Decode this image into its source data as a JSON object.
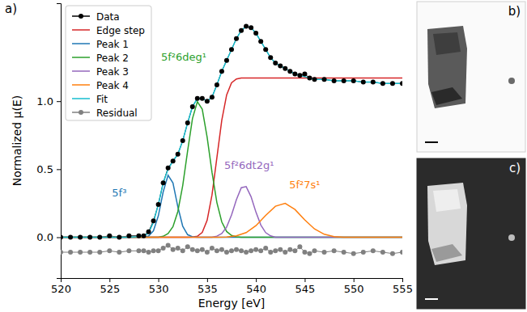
{
  "chart_data": {
    "type": "line",
    "panel_label": "a)",
    "xlabel": "Energy [eV]",
    "ylabel": "Normalized μ(E)",
    "xlim": [
      520,
      555
    ],
    "xticks": [
      520,
      525,
      530,
      535,
      540,
      545,
      550,
      555
    ],
    "ylim": [
      -0.3,
      1.72
    ],
    "yticks": [
      {
        "value": 0,
        "label": "0.0"
      },
      {
        "value": 0.5,
        "label": "0.5"
      },
      {
        "value": 1,
        "label": "1.0"
      }
    ],
    "grid": false,
    "legend": "upper left",
    "series": [
      {
        "name": "Data",
        "color": "#000000",
        "marker": "circle",
        "x": [
          520,
          521,
          522,
          523,
          524,
          525,
          526,
          527,
          528,
          528.5,
          529,
          529.5,
          530,
          530.5,
          531,
          531.5,
          532,
          532.5,
          533,
          533.5,
          534,
          534.5,
          535,
          535.5,
          536,
          536.5,
          537,
          537.5,
          538,
          538.5,
          539,
          539.5,
          540,
          540.5,
          541,
          541.5,
          542,
          542.5,
          543,
          543.5,
          544,
          544.5,
          545,
          545.5,
          546,
          547,
          548,
          549,
          550,
          551,
          552,
          553,
          554,
          555
        ],
        "values": [
          0,
          0,
          0,
          0,
          0,
          0.01,
          0,
          0.01,
          0.01,
          0.01,
          0.04,
          0.12,
          0.24,
          0.4,
          0.51,
          0.56,
          0.61,
          0.71,
          0.84,
          0.96,
          1.02,
          1.02,
          1.0,
          1.03,
          1.12,
          1.22,
          1.3,
          1.38,
          1.46,
          1.52,
          1.55,
          1.54,
          1.5,
          1.44,
          1.38,
          1.32,
          1.28,
          1.26,
          1.24,
          1.22,
          1.2,
          1.19,
          1.2,
          1.17,
          1.16,
          1.16,
          1.15,
          1.15,
          1.15,
          1.14,
          1.14,
          1.13,
          1.13,
          1.13
        ]
      },
      {
        "name": "Edge step",
        "color": "#d62728",
        "x": [
          520,
          533,
          533.5,
          534,
          534.5,
          535,
          535.5,
          536,
          536.5,
          537,
          537.5,
          538,
          538.5,
          555
        ],
        "values": [
          0,
          0,
          0.002,
          0.007,
          0.035,
          0.124,
          0.311,
          0.585,
          0.859,
          1.046,
          1.135,
          1.163,
          1.17,
          1.17
        ]
      },
      {
        "name": "Peak 1",
        "color": "#1f77b4",
        "x": [
          520,
          528.5,
          529,
          529.5,
          530,
          530.5,
          531,
          531.5,
          532,
          532.5,
          533,
          533.5,
          534,
          555
        ],
        "values": [
          0,
          0,
          0.009,
          0.047,
          0.157,
          0.334,
          0.456,
          0.399,
          0.224,
          0.081,
          0.019,
          0.003,
          0,
          0
        ]
      },
      {
        "name": "Peak 2",
        "color": "#2ca02c",
        "x": [
          520,
          530,
          530.5,
          531,
          531.5,
          532,
          532.5,
          533,
          533.5,
          534,
          534.5,
          535,
          535.5,
          536,
          536.5,
          537,
          537.5,
          538,
          538.5,
          555
        ],
        "values": [
          0,
          0,
          0.007,
          0.027,
          0.078,
          0.189,
          0.38,
          0.633,
          0.873,
          0.996,
          0.941,
          0.736,
          0.477,
          0.255,
          0.113,
          0.042,
          0.013,
          0.003,
          0,
          0
        ]
      },
      {
        "name": "Peak 3",
        "color": "#9467bd",
        "x": [
          520,
          535.5,
          536,
          536.5,
          537,
          537.5,
          538,
          538.5,
          539,
          539.5,
          540,
          540.5,
          541,
          541.5,
          542,
          555
        ],
        "values": [
          0,
          0,
          0.008,
          0.027,
          0.075,
          0.163,
          0.276,
          0.364,
          0.372,
          0.298,
          0.185,
          0.09,
          0.034,
          0.01,
          0,
          0
        ]
      },
      {
        "name": "Peak 4",
        "color": "#ff7f0e",
        "x": [
          520,
          536,
          537,
          538,
          539,
          540,
          541,
          542,
          543,
          544,
          545,
          546,
          547,
          548,
          549,
          555
        ],
        "values": [
          0,
          0,
          0.002,
          0.01,
          0.034,
          0.085,
          0.16,
          0.228,
          0.249,
          0.204,
          0.128,
          0.061,
          0.022,
          0.005,
          0,
          0
        ]
      },
      {
        "name": "Fit",
        "color": "#17becf",
        "x": [
          520,
          521,
          522,
          523,
          524,
          525,
          526,
          527,
          528,
          528.5,
          529,
          529.5,
          530,
          530.5,
          531,
          531.5,
          532,
          532.5,
          533,
          533.5,
          534,
          534.5,
          535,
          535.5,
          536,
          536.5,
          537,
          537.5,
          538,
          538.5,
          539,
          539.5,
          540,
          540.5,
          541,
          541.5,
          542,
          542.5,
          543,
          543.5,
          544,
          544.5,
          545,
          545.5,
          546,
          547,
          548,
          549,
          550,
          551,
          552,
          553,
          554,
          555
        ],
        "values": [
          0,
          0,
          0,
          0,
          0,
          0,
          0,
          0,
          0.005,
          0.01,
          0.03,
          0.11,
          0.24,
          0.4,
          0.5,
          0.56,
          0.61,
          0.71,
          0.84,
          0.96,
          1.02,
          1.02,
          1.0,
          1.03,
          1.12,
          1.22,
          1.3,
          1.38,
          1.46,
          1.52,
          1.55,
          1.54,
          1.5,
          1.44,
          1.38,
          1.32,
          1.28,
          1.26,
          1.24,
          1.22,
          1.2,
          1.19,
          1.18,
          1.17,
          1.16,
          1.16,
          1.15,
          1.15,
          1.15,
          1.14,
          1.14,
          1.13,
          1.13,
          1.13
        ]
      },
      {
        "name": "Residual",
        "color": "#808080",
        "marker": "circle",
        "x": [
          520,
          521,
          522,
          523,
          524,
          525,
          526,
          527,
          528,
          528.5,
          529,
          529.5,
          530,
          530.5,
          531,
          531.5,
          532,
          532.5,
          533,
          533.5,
          534,
          534.5,
          535,
          535.5,
          536,
          536.5,
          537,
          537.5,
          538,
          538.5,
          539,
          539.5,
          540,
          540.5,
          541,
          541.5,
          542,
          542.5,
          543,
          543.5,
          544,
          544.5,
          545,
          545.5,
          546,
          547,
          548,
          549,
          550,
          551,
          552,
          553,
          554,
          555
        ],
        "values": [
          -0.11,
          -0.11,
          -0.11,
          -0.11,
          -0.11,
          -0.1,
          -0.11,
          -0.1,
          -0.1,
          -0.1,
          -0.11,
          -0.1,
          -0.1,
          -0.08,
          -0.06,
          -0.09,
          -0.08,
          -0.1,
          -0.07,
          -0.09,
          -0.1,
          -0.09,
          -0.11,
          -0.08,
          -0.1,
          -0.09,
          -0.11,
          -0.1,
          -0.09,
          -0.1,
          -0.11,
          -0.1,
          -0.09,
          -0.1,
          -0.08,
          -0.11,
          -0.1,
          -0.09,
          -0.11,
          -0.09,
          -0.1,
          -0.07,
          -0.11,
          -0.12,
          -0.1,
          -0.11,
          -0.1,
          -0.11,
          -0.12,
          -0.11,
          -0.1,
          -0.11,
          -0.12,
          -0.11
        ]
      }
    ],
    "annotations": [
      {
        "text": "5f³",
        "x": 526,
        "y": 0.3,
        "color": "#1f77b4"
      },
      {
        "text": "5f²6deg¹",
        "x": 532.6,
        "y": 1.3,
        "color": "#2ca02c"
      },
      {
        "text": "5f²6dt2g¹",
        "x": 539.3,
        "y": 0.5,
        "color": "#9467bd"
      },
      {
        "text": "5f²7s¹",
        "x": 545,
        "y": 0.36,
        "color": "#ff7f0e"
      }
    ]
  },
  "images": [
    {
      "label": "b)"
    },
    {
      "label": "c)"
    }
  ]
}
